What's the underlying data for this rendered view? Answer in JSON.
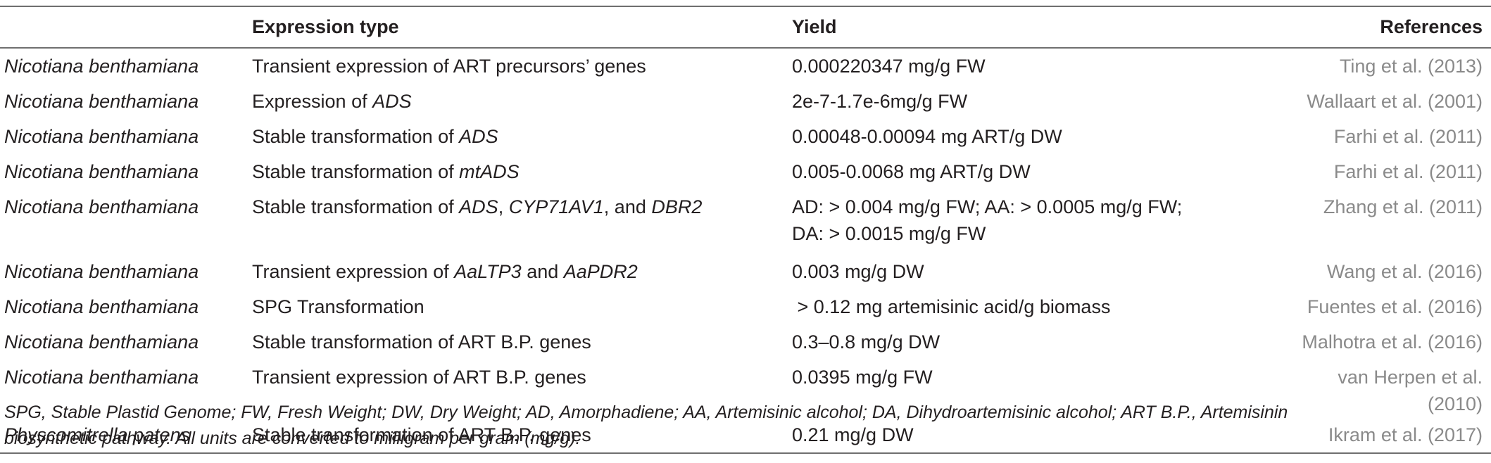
{
  "table": {
    "headers": [
      "",
      "Expression type",
      "Yield",
      "References"
    ],
    "rows": [
      {
        "organism": "Nicotiana benthamiana",
        "expr": [
          "Transient expression of ART precursors’ genes"
        ],
        "yield": "0.000220347 mg/g FW",
        "ref": "Ting et al. (2013)"
      },
      {
        "organism": "Nicotiana benthamiana",
        "expr": [
          "Expression of ",
          "ADS"
        ],
        "yield": "2e-7-1.7e-6mg/g FW",
        "ref": "Wallaart et al. (2001)"
      },
      {
        "organism": "Nicotiana benthamiana",
        "expr": [
          "Stable transformation of ",
          "ADS"
        ],
        "yield": "0.00048-0.00094 mg ART/g DW",
        "ref": "Farhi et al. (2011)"
      },
      {
        "organism": "Nicotiana benthamiana",
        "expr": [
          "Stable transformation of ",
          "mtADS"
        ],
        "yield": "0.005-0.0068 mg ART/g DW",
        "ref": "Farhi et al. (2011)"
      },
      {
        "organism": "Nicotiana benthamiana",
        "expr": [
          "Stable transformation of ",
          "ADS",
          ", ",
          "CYP71AV1",
          ", and ",
          "DBR2"
        ],
        "yield": "AD: > 0.004 mg/g FW; AA: > 0.0005 mg/g FW;",
        "yield2": "DA: > 0.0015 mg/g FW",
        "ref": "Zhang et al. (2011)"
      },
      {
        "organism": "Nicotiana benthamiana",
        "expr": [
          "Transient expression of ",
          "AaLTP3",
          " and ",
          "AaPDR2"
        ],
        "yield": "0.003 mg/g DW",
        "ref": "Wang et al. (2016)"
      },
      {
        "organism": "Nicotiana benthamiana",
        "expr": [
          "SPG Transformation"
        ],
        "yield": " > 0.12 mg artemisinic acid/g biomass",
        "ref": "Fuentes et al. (2016)"
      },
      {
        "organism": "Nicotiana benthamiana",
        "expr": [
          "Stable transformation of ART B.P. genes"
        ],
        "yield": "0.3–0.8 mg/g DW",
        "ref": "Malhotra et al. (2016)"
      },
      {
        "organism": "Nicotiana benthamiana",
        "expr": [
          "Transient expression of ART B.P. genes"
        ],
        "yield": "0.0395 mg/g FW",
        "ref": "van Herpen et al. (2010)"
      },
      {
        "organism": "Physcomitrella patens",
        "expr": [
          "Stable transformation of ART B.P. genes"
        ],
        "yield": "0.21 mg/g DW",
        "ref": "Ikram et al. (2017)"
      }
    ]
  },
  "footnote": {
    "line1": "SPG, Stable Plastid Genome; FW, Fresh Weight; DW, Dry Weight; AD, Amorphadiene; AA, Artemisinic alcohol; DA, Dihydroartemisinic alcohol; ART B.P., Artemisinin",
    "line2": "biosynthetic pathway. All units are converted to milligram per gram (mg/g)."
  }
}
